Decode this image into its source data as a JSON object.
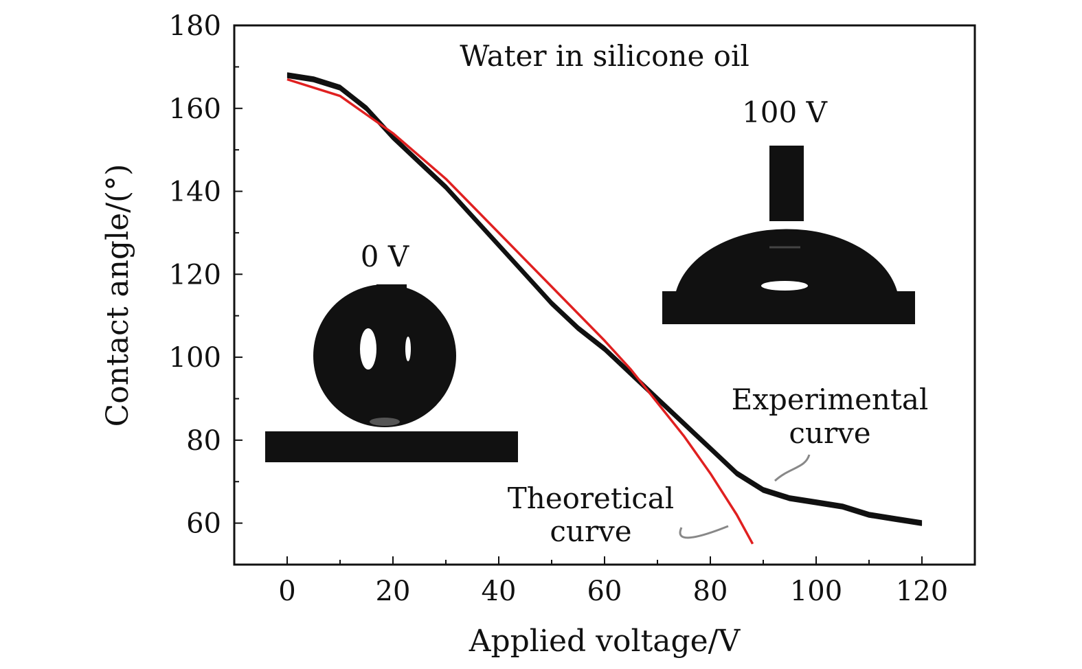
{
  "chart_data": {
    "type": "line",
    "title": "Water in silicone oil",
    "xlabel": "Applied voltage/V",
    "ylabel": "Contact angle/(°)",
    "xlim": [
      -10,
      130
    ],
    "ylim": [
      50,
      180
    ],
    "xticks": [
      0,
      20,
      40,
      60,
      80,
      100,
      120
    ],
    "yticks": [
      60,
      80,
      100,
      120,
      140,
      160,
      180
    ],
    "series": [
      {
        "name": "Experimental curve",
        "color": "#111111",
        "x": [
          0,
          5,
          10,
          15,
          20,
          25,
          30,
          35,
          40,
          45,
          50,
          55,
          60,
          65,
          70,
          75,
          80,
          85,
          90,
          95,
          100,
          105,
          110,
          115,
          120
        ],
        "y": [
          168,
          167,
          165,
          160,
          153,
          147,
          141,
          134,
          127,
          120,
          113,
          107,
          102,
          96,
          90,
          84,
          78,
          72,
          68,
          66,
          65,
          64,
          62,
          61,
          60
        ]
      },
      {
        "name": "Theoretical curve",
        "color": "#e02020",
        "x": [
          0,
          10,
          20,
          30,
          40,
          50,
          60,
          65,
          70,
          75,
          80,
          85,
          88
        ],
        "y": [
          167,
          163,
          154,
          143,
          130,
          117,
          104,
          97,
          89,
          81,
          72,
          62,
          55
        ]
      }
    ],
    "annotations": {
      "theoretical_line1": "Theoretical",
      "theoretical_line2": "curve",
      "experimental_line1": "Experimental",
      "experimental_line2": "curve",
      "inset_left_label": "0 V",
      "inset_right_label": "100 V"
    },
    "grid": false,
    "legend": "none"
  }
}
